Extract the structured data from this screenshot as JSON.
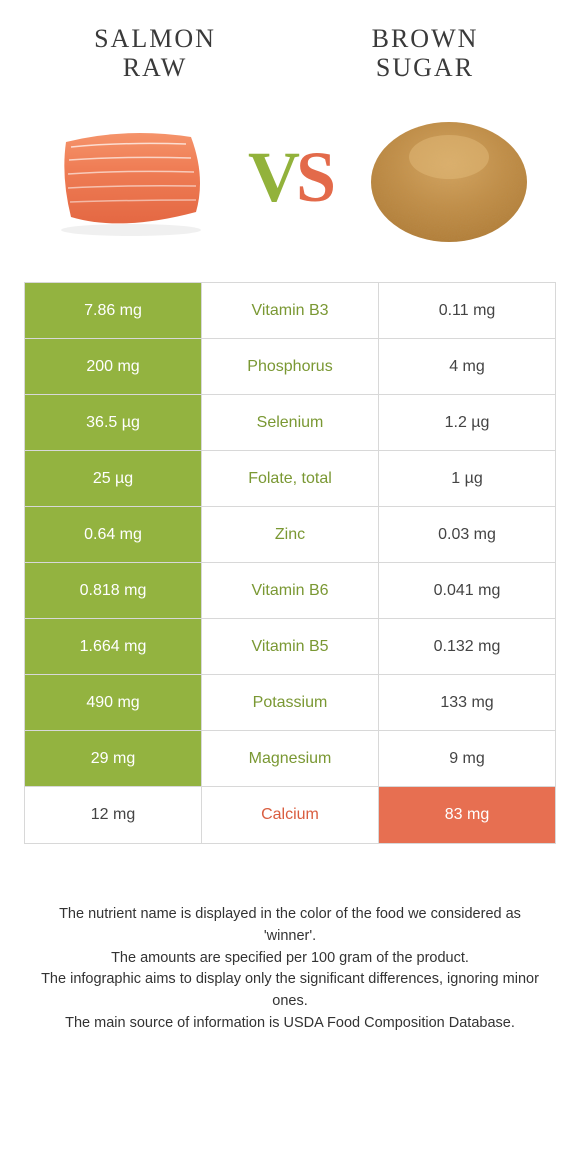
{
  "colors": {
    "green": "#93b340",
    "orange": "#e76f51",
    "green_text": "#7a9833",
    "orange_text": "#d95d3f",
    "border": "#d8d8d8",
    "text": "#333333",
    "bg": "#ffffff"
  },
  "header": {
    "left_line1": "Salmon",
    "left_line2": "raw",
    "right_line1": "Brown",
    "right_line2": "sugar"
  },
  "vs": {
    "v": "V",
    "s": "S"
  },
  "rows": [
    {
      "left": "7.86 mg",
      "center": "Vitamin B3",
      "right": "0.11 mg",
      "winner": "left"
    },
    {
      "left": "200 mg",
      "center": "Phosphorus",
      "right": "4 mg",
      "winner": "left"
    },
    {
      "left": "36.5 µg",
      "center": "Selenium",
      "right": "1.2 µg",
      "winner": "left"
    },
    {
      "left": "25 µg",
      "center": "Folate, total",
      "right": "1 µg",
      "winner": "left"
    },
    {
      "left": "0.64 mg",
      "center": "Zinc",
      "right": "0.03 mg",
      "winner": "left"
    },
    {
      "left": "0.818 mg",
      "center": "Vitamin B6",
      "right": "0.041 mg",
      "winner": "left"
    },
    {
      "left": "1.664 mg",
      "center": "Vitamin B5",
      "right": "0.132 mg",
      "winner": "left"
    },
    {
      "left": "490 mg",
      "center": "Potassium",
      "right": "133 mg",
      "winner": "left"
    },
    {
      "left": "29 mg",
      "center": "Magnesium",
      "right": "9 mg",
      "winner": "left"
    },
    {
      "left": "12 mg",
      "center": "Calcium",
      "right": "83 mg",
      "winner": "right"
    }
  ],
  "footer": {
    "l1": "The nutrient name is displayed in the color of the food we considered as 'winner'.",
    "l2": "The amounts are specified per 100 gram of the product.",
    "l3": "The infographic aims to display only the significant differences, ignoring minor ones.",
    "l4": "The main source of information is USDA Food Composition Database."
  }
}
